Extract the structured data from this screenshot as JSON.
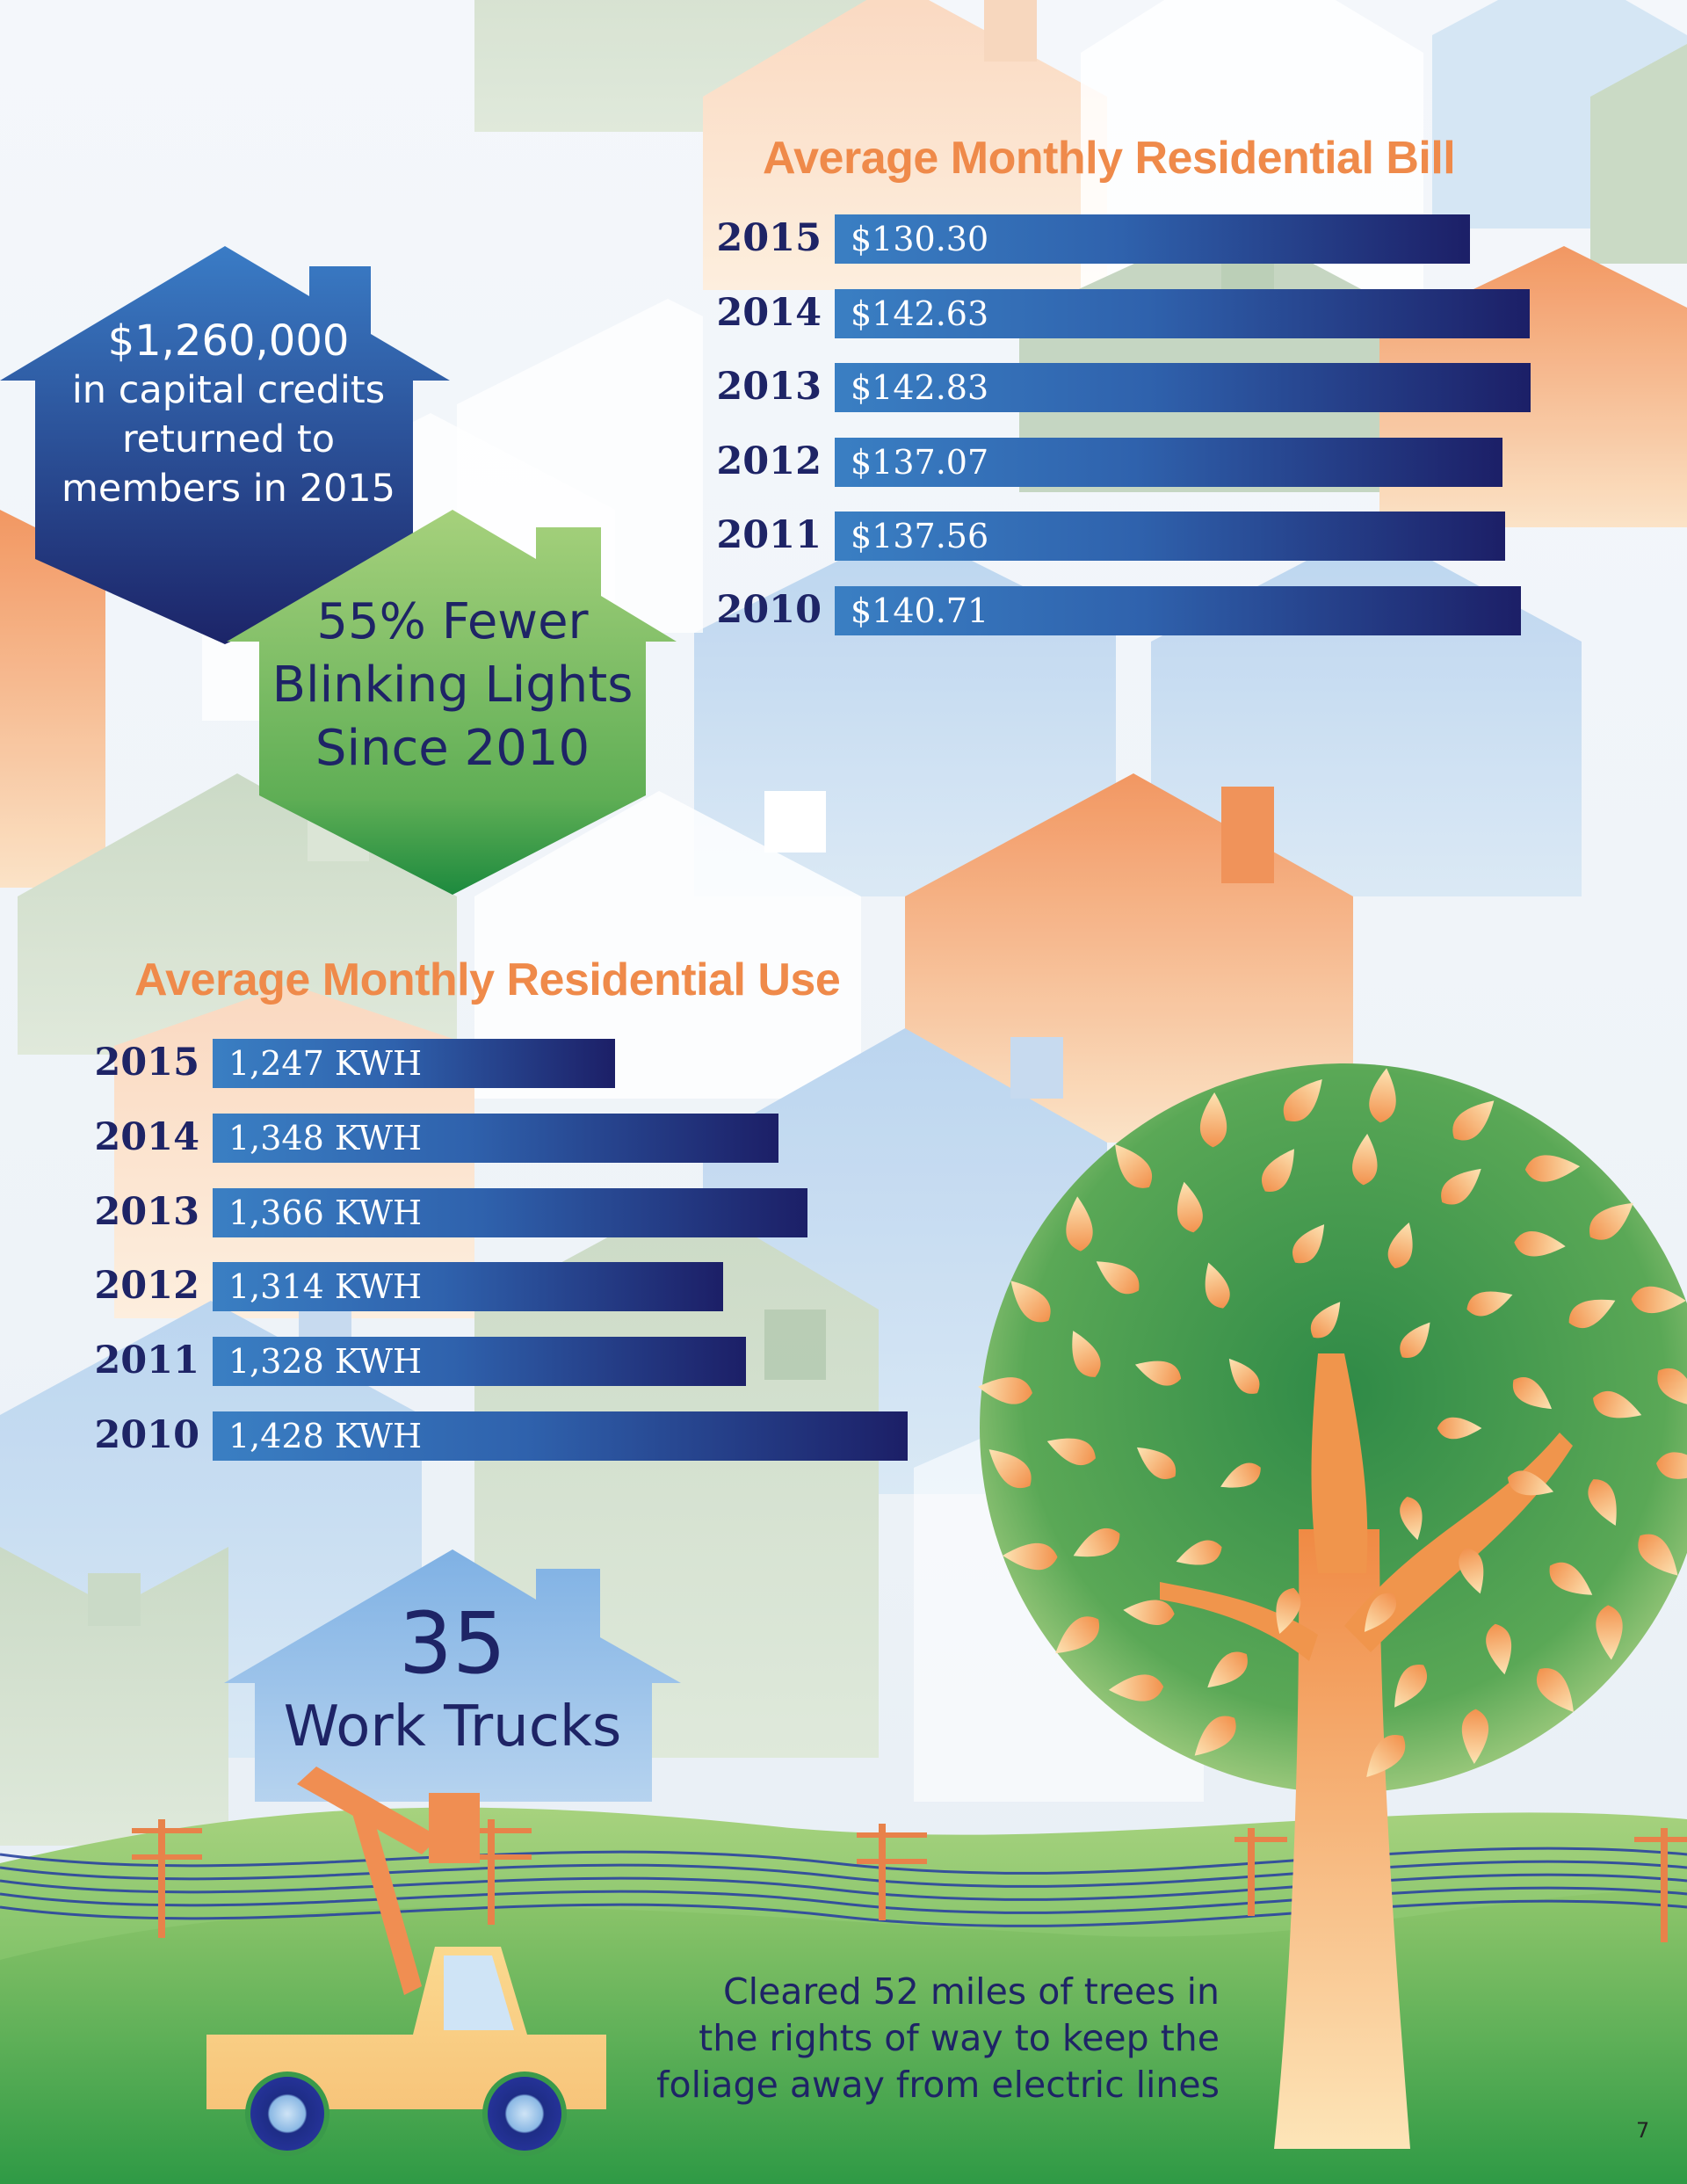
{
  "chart_data": [
    {
      "type": "bar",
      "title": "Average Monthly Residential Bill",
      "categories": [
        "2015",
        "2014",
        "2013",
        "2012",
        "2011",
        "2010"
      ],
      "values": [
        130.3,
        142.63,
        142.83,
        137.07,
        137.56,
        140.71
      ],
      "value_labels": [
        "$130.30",
        "$142.63",
        "$142.83",
        "$137.07",
        "$137.56",
        "$140.71"
      ],
      "orientation": "horizontal"
    },
    {
      "type": "bar",
      "title": "Average Monthly Residential Use",
      "categories": [
        "2015",
        "2014",
        "2013",
        "2012",
        "2011",
        "2010"
      ],
      "values": [
        1247,
        1348,
        1366,
        1314,
        1328,
        1428
      ],
      "value_labels": [
        "1,247 KWH",
        "1,348 KWH",
        "1,366 KWH",
        "1,314 KWH",
        "1,328 KWH",
        "1,428 KWH"
      ],
      "orientation": "horizontal"
    }
  ],
  "callouts": {
    "credits_amount": "$1,260,000",
    "credits_line1": "in capital credits",
    "credits_line2": "returned to",
    "credits_line3": "members in 2015",
    "blinking_line1": "55% Fewer",
    "blinking_line2": "Blinking Lights",
    "blinking_line3": "Since 2010",
    "trucks_number": "35",
    "trucks_label": "Work Trucks",
    "cleared_line1": "Cleared 52 miles of trees in",
    "cleared_line2": "the rights of way to keep the",
    "cleared_line3": "foliage away from electric lines"
  },
  "page_number": "7",
  "colors": {
    "title_orange": "#ef8a4a",
    "navy_text": "#1e2466",
    "bar_light": "#3a7fc3",
    "bar_dark": "#1c1f67",
    "credits_house": "#2a5aa6",
    "blinking_house": "#7fbf5e",
    "trucks_house": "#8ab7e3",
    "tree_green": "#4a9a4e",
    "trunk_orange": "#f2a25c"
  }
}
